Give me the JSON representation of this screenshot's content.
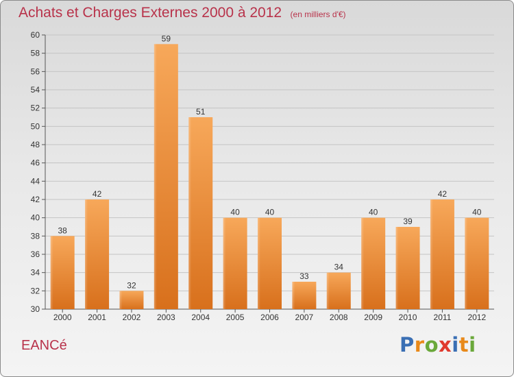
{
  "title": {
    "main": "Achats et Charges Externes 2000 à 2012",
    "unit": "(en milliers d'€)"
  },
  "commune": "EANCé",
  "logo": {
    "text": "Proxiti",
    "letter_colors": [
      "#3a6fb4",
      "#e8891a",
      "#6aa83a",
      "#e03a2e",
      "#3a6fb4",
      "#e8891a",
      "#6aa83a"
    ]
  },
  "colors": {
    "title": "#b8324a",
    "bar_light": "#f5a24e",
    "bar_dark": "#d9701d"
  },
  "chart_data": {
    "type": "bar",
    "categories": [
      "2000",
      "2001",
      "2002",
      "2003",
      "2004",
      "2005",
      "2006",
      "2007",
      "2008",
      "2009",
      "2010",
      "2011",
      "2012"
    ],
    "values": [
      38,
      42,
      32,
      59,
      51,
      40,
      40,
      33,
      34,
      40,
      39,
      42,
      40
    ],
    "data_labels": [
      "38",
      "42",
      "32",
      "59",
      "51",
      "40",
      "40",
      "33",
      "34",
      "40",
      "39",
      "42",
      "40"
    ],
    "ylim": [
      30,
      60
    ],
    "yticks": [
      "30",
      "32",
      "34",
      "36",
      "38",
      "40",
      "42",
      "44",
      "46",
      "48",
      "50",
      "52",
      "54",
      "56",
      "58",
      "60"
    ],
    "grid": true
  }
}
